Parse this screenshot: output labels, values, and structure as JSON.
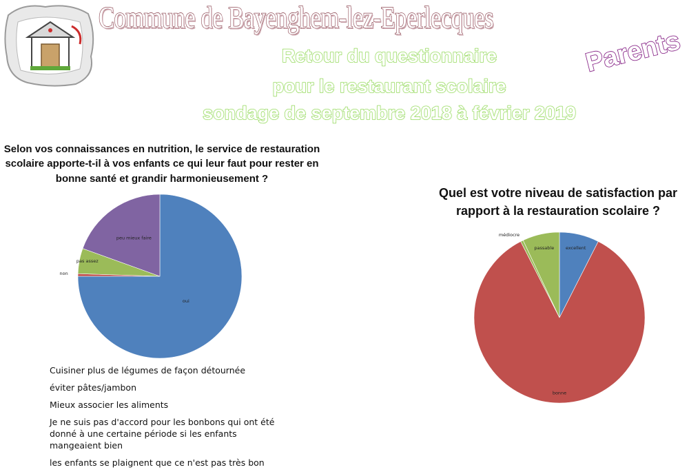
{
  "header": {
    "commune": "Commune de Bayenghem-lez-Eperlecques",
    "survey_lines": [
      "Retour du questionnaire",
      "pour le restaurant scolaire",
      "sondage de septembre 2018 à février 2019"
    ],
    "audience": "Parents"
  },
  "colors": {
    "title_outline": "#8e4a55",
    "survey_outline": "#7ccd3a",
    "audience_outline": "#8a2a8a",
    "blue": "#4f81bd",
    "red": "#c0504d",
    "green": "#9bbb59",
    "purple": "#8064a2"
  },
  "chart_data": [
    {
      "type": "pie",
      "title": "Selon vos connaissances en nutrition, le service de restauration scolaire apporte-t-il à vos enfants ce qui leur faut pour rester en bonne santé et grandir harmonieusement ?",
      "categories": [
        "oui",
        "non",
        "pas assez",
        "peu mieux faire"
      ],
      "values": [
        75,
        0.5,
        5,
        19.5
      ],
      "colors": [
        "#4f81bd",
        "#c0504d",
        "#9bbb59",
        "#8064a2"
      ],
      "labels": [
        "oui",
        "non",
        "pas assez",
        "peu mieux faire"
      ]
    },
    {
      "type": "pie",
      "title": "Quel est votre niveau de satisfaction par rapport à la restauration scolaire ?",
      "categories": [
        "excellent",
        "bonne",
        "médiocre",
        "passable"
      ],
      "values": [
        7.5,
        85,
        0.5,
        7
      ],
      "colors": [
        "#4f81bd",
        "#c0504d",
        "#9bbb59",
        "#9bbb59"
      ],
      "labels": [
        "excellent",
        "bonne",
        "médiocre",
        "passable"
      ]
    }
  ],
  "comments": [
    "Cuisiner plus de légumes de façon détournée",
    "éviter pâtes/jambon",
    "Mieux associer les aliments",
    "Je ne suis pas d'accord pour les bonbons qui ont été donné à une certaine période si les enfants mangeaient bien",
    "les enfants se plaignent que ce n'est pas très bon"
  ]
}
